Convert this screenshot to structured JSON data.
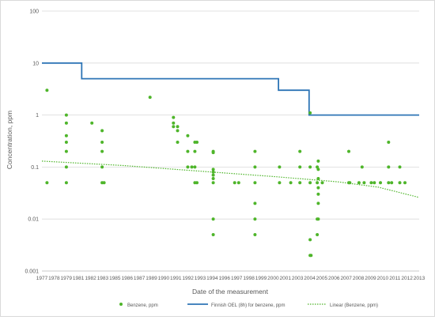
{
  "chart_data": {
    "type": "scatter",
    "title": "",
    "xlabel": "Date of the measurement",
    "ylabel": "Concentration, ppm",
    "y_scale": "log",
    "ylim": [
      0.001,
      100
    ],
    "xlim": [
      1977,
      2014
    ],
    "y_ticks": [
      "0.001",
      "0.01",
      "0.1",
      "1",
      "10",
      "100"
    ],
    "x_ticks": [
      "1977",
      "1978",
      "1979",
      "1981",
      "1982",
      "1983",
      "1985",
      "1986",
      "1987",
      "1989",
      "1990",
      "1991",
      "1992",
      "1993",
      "1994",
      "1996",
      "1997",
      "1998",
      "1999",
      "2000",
      "2001",
      "2003",
      "2004",
      "2005",
      "2006",
      "2007",
      "2008",
      "2009",
      "2010",
      "2011",
      "2012",
      "2013"
    ],
    "grid": "horizontal",
    "legend_position": "bottom",
    "colors": {
      "scatter": "#4eb52a",
      "oel": "#2e75b6",
      "trend": "#4eb52a",
      "grid": "#d9d9d9",
      "axis_text": "#595959"
    },
    "series": [
      {
        "name": "Benzene, ppm",
        "kind": "scatter",
        "points": [
          [
            1977.5,
            3
          ],
          [
            1977.5,
            0.05
          ],
          [
            1979.4,
            1
          ],
          [
            1979.4,
            0.7
          ],
          [
            1979.4,
            0.4
          ],
          [
            1979.4,
            0.3
          ],
          [
            1979.4,
            0.2
          ],
          [
            1979.4,
            0.1
          ],
          [
            1979.4,
            0.05
          ],
          [
            1981.9,
            0.7
          ],
          [
            1982.9,
            0.5
          ],
          [
            1982.9,
            0.3
          ],
          [
            1982.9,
            0.2
          ],
          [
            1982.9,
            0.1
          ],
          [
            1982.9,
            0.05
          ],
          [
            1983.1,
            0.05
          ],
          [
            1987.6,
            2.2
          ],
          [
            1989.9,
            0.9
          ],
          [
            1989.9,
            0.7
          ],
          [
            1989.9,
            0.6
          ],
          [
            1990.3,
            0.6
          ],
          [
            1990.3,
            0.5
          ],
          [
            1990.3,
            0.3
          ],
          [
            1991.3,
            0.4
          ],
          [
            1991.3,
            0.2
          ],
          [
            1991.3,
            0.1
          ],
          [
            1991.7,
            0.1
          ],
          [
            1992.0,
            0.3
          ],
          [
            1992.0,
            0.2
          ],
          [
            1992.0,
            0.1
          ],
          [
            1992.0,
            0.05
          ],
          [
            1992.2,
            0.3
          ],
          [
            1992.2,
            0.05
          ],
          [
            1993.8,
            0.2
          ],
          [
            1993.8,
            0.19
          ],
          [
            1993.8,
            0.09
          ],
          [
            1993.8,
            0.08
          ],
          [
            1993.8,
            0.07
          ],
          [
            1993.8,
            0.06
          ],
          [
            1993.8,
            0.05
          ],
          [
            1993.8,
            0.01
          ],
          [
            1993.8,
            0.005
          ],
          [
            1995.9,
            0.05
          ],
          [
            1996.3,
            0.05
          ],
          [
            1997.9,
            0.2
          ],
          [
            1997.9,
            0.1
          ],
          [
            1997.9,
            0.05
          ],
          [
            1997.9,
            0.02
          ],
          [
            1997.9,
            0.01
          ],
          [
            1997.9,
            0.005
          ],
          [
            2000.3,
            0.1
          ],
          [
            2000.3,
            0.05
          ],
          [
            2001.4,
            0.05
          ],
          [
            2002.3,
            0.2
          ],
          [
            2002.3,
            0.1
          ],
          [
            2002.3,
            0.05
          ],
          [
            2003.3,
            1.1
          ],
          [
            2003.3,
            0.1
          ],
          [
            2003.3,
            0.05
          ],
          [
            2003.3,
            0.004
          ],
          [
            2003.3,
            0.002
          ],
          [
            2003.4,
            0.002
          ],
          [
            2004.0,
            0.1
          ],
          [
            2004.0,
            0.05
          ],
          [
            2004.0,
            0.01
          ],
          [
            2004.0,
            0.005
          ],
          [
            2004.1,
            0.13
          ],
          [
            2004.1,
            0.09
          ],
          [
            2004.1,
            0.06
          ],
          [
            2004.1,
            0.04
          ],
          [
            2004.1,
            0.03
          ],
          [
            2004.1,
            0.02
          ],
          [
            2004.1,
            0.01
          ],
          [
            2004.5,
            0.05
          ],
          [
            2007.1,
            0.2
          ],
          [
            2007.1,
            0.05
          ],
          [
            2007.2,
            0.05
          ],
          [
            2008.1,
            0.05
          ],
          [
            2008.4,
            0.1
          ],
          [
            2008.6,
            0.05
          ],
          [
            2009.3,
            0.05
          ],
          [
            2009.6,
            0.05
          ],
          [
            2010.2,
            0.05
          ],
          [
            2011.0,
            0.3
          ],
          [
            2011.0,
            0.1
          ],
          [
            2011.0,
            0.05
          ],
          [
            2011.3,
            0.05
          ],
          [
            2012.1,
            0.1
          ],
          [
            2012.1,
            0.05
          ],
          [
            2012.6,
            0.05
          ]
        ]
      },
      {
        "name": "Finnish OEL (8h) for benzene, ppm",
        "kind": "step",
        "points": [
          [
            1977,
            10
          ],
          [
            1980.9,
            10
          ],
          [
            1980.9,
            5
          ],
          [
            2000.2,
            5
          ],
          [
            2000.2,
            3
          ],
          [
            2003.2,
            3
          ],
          [
            2003.2,
            1
          ],
          [
            2014,
            1
          ]
        ]
      },
      {
        "name": "Linear (Benzene, ppm)",
        "kind": "trend",
        "points": [
          [
            1977,
            0.13
          ],
          [
            1985,
            0.107
          ],
          [
            1993,
            0.082
          ],
          [
            2000,
            0.065
          ],
          [
            2006,
            0.052
          ],
          [
            2010,
            0.041
          ],
          [
            2014,
            0.026
          ]
        ]
      }
    ]
  }
}
